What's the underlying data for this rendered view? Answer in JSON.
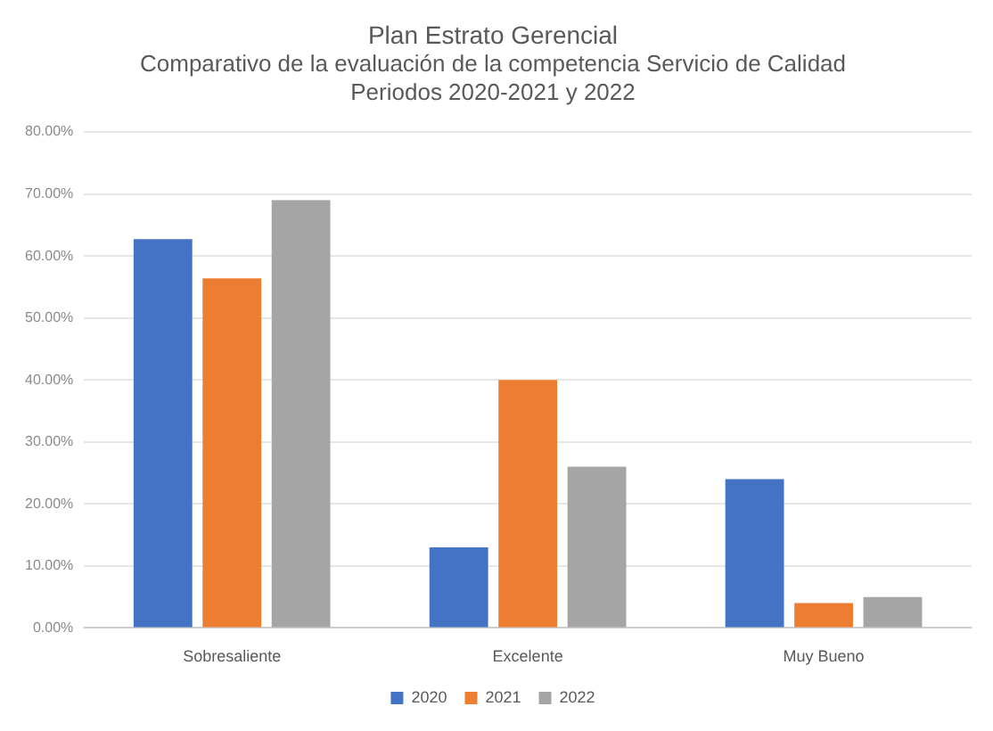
{
  "chart_data": {
    "type": "bar",
    "title": "Plan Estrato Gerencial",
    "subtitle": "Comparativo de la evaluación de la competencia Servicio de Calidad\nPeriodos 2020-2021 y 2022",
    "categories": [
      "Sobresaliente",
      "Excelente",
      "Muy Bueno"
    ],
    "series": [
      {
        "name": "2020",
        "color": "#4472c4",
        "values": [
          62.7,
          13,
          24
        ]
      },
      {
        "name": "2021",
        "color": "#ed7d31",
        "values": [
          56.4,
          40,
          4
        ]
      },
      {
        "name": "2022",
        "color": "#a5a5a5",
        "values": [
          69,
          26,
          5
        ]
      }
    ],
    "ylim": [
      0,
      80
    ],
    "yticks": [
      {
        "value": 0,
        "label": "0.00%"
      },
      {
        "value": 10,
        "label": "10.00%"
      },
      {
        "value": 20,
        "label": "20.00%"
      },
      {
        "value": 30,
        "label": "30.00%"
      },
      {
        "value": 40,
        "label": "40.00%"
      },
      {
        "value": 50,
        "label": "50.00%"
      },
      {
        "value": 60,
        "label": "60.00%"
      },
      {
        "value": 70,
        "label": "70.00%"
      },
      {
        "value": 80,
        "label": "80.00%"
      }
    ],
    "grid": "y",
    "legend": "bottom"
  }
}
